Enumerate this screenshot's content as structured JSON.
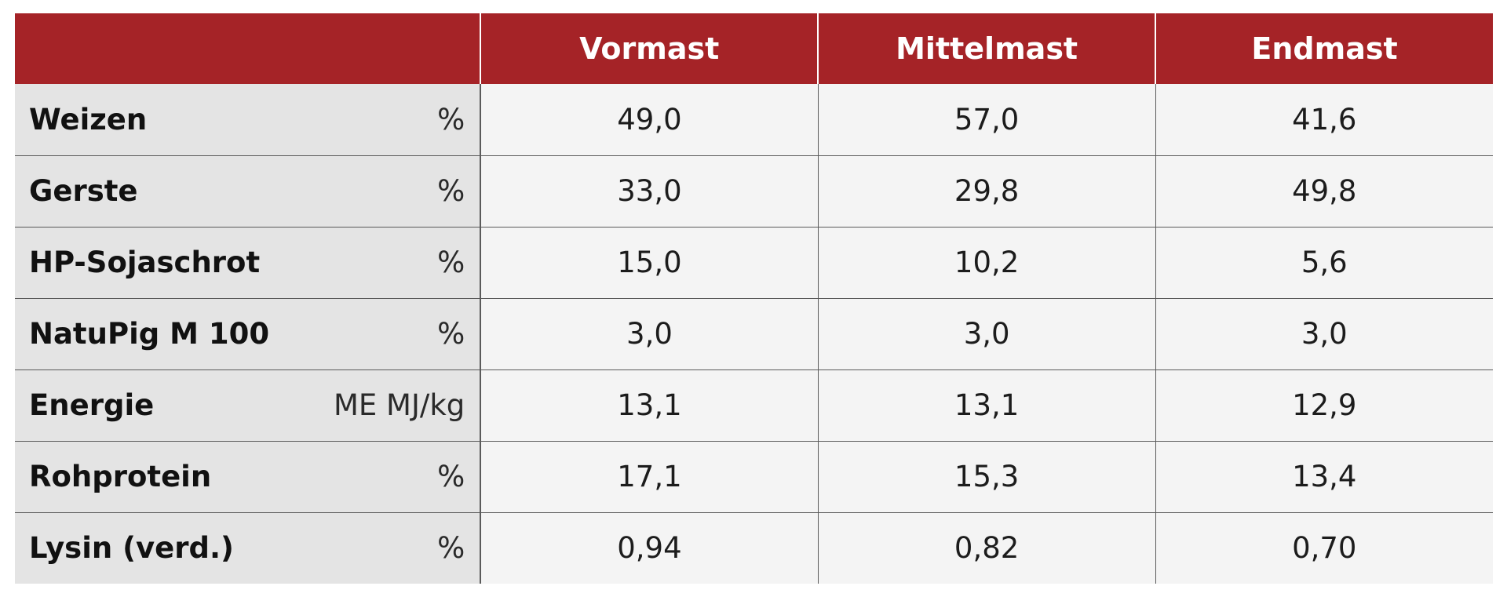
{
  "table": {
    "header": {
      "blank": "",
      "columns": [
        "Vormast",
        "Mittelmast",
        "Endmast"
      ]
    },
    "rows": [
      {
        "name": "Weizen",
        "unit": "%",
        "values": [
          "49,0",
          "57,0",
          "41,6"
        ]
      },
      {
        "name": "Gerste",
        "unit": "%",
        "values": [
          "33,0",
          "29,8",
          "49,8"
        ]
      },
      {
        "name": "HP-Sojaschrot",
        "unit": "%",
        "values": [
          "15,0",
          "10,2",
          "5,6"
        ]
      },
      {
        "name": "NatuPig M 100",
        "unit": "%",
        "values": [
          "3,0",
          "3,0",
          "3,0"
        ]
      },
      {
        "name": "Energie",
        "unit": "ME MJ/kg",
        "values": [
          "13,1",
          "13,1",
          "12,9"
        ]
      },
      {
        "name": "Rohprotein",
        "unit": "%",
        "values": [
          "17,1",
          "15,3",
          "13,4"
        ]
      },
      {
        "name": "Lysin (verd.)",
        "unit": "%",
        "values": [
          "0,94",
          "0,82",
          "0,70"
        ]
      }
    ]
  },
  "colors": {
    "header_background": "#a52327",
    "header_text": "#ffffff",
    "label_background": "#e4e4e4",
    "value_background": "#f4f4f4"
  }
}
